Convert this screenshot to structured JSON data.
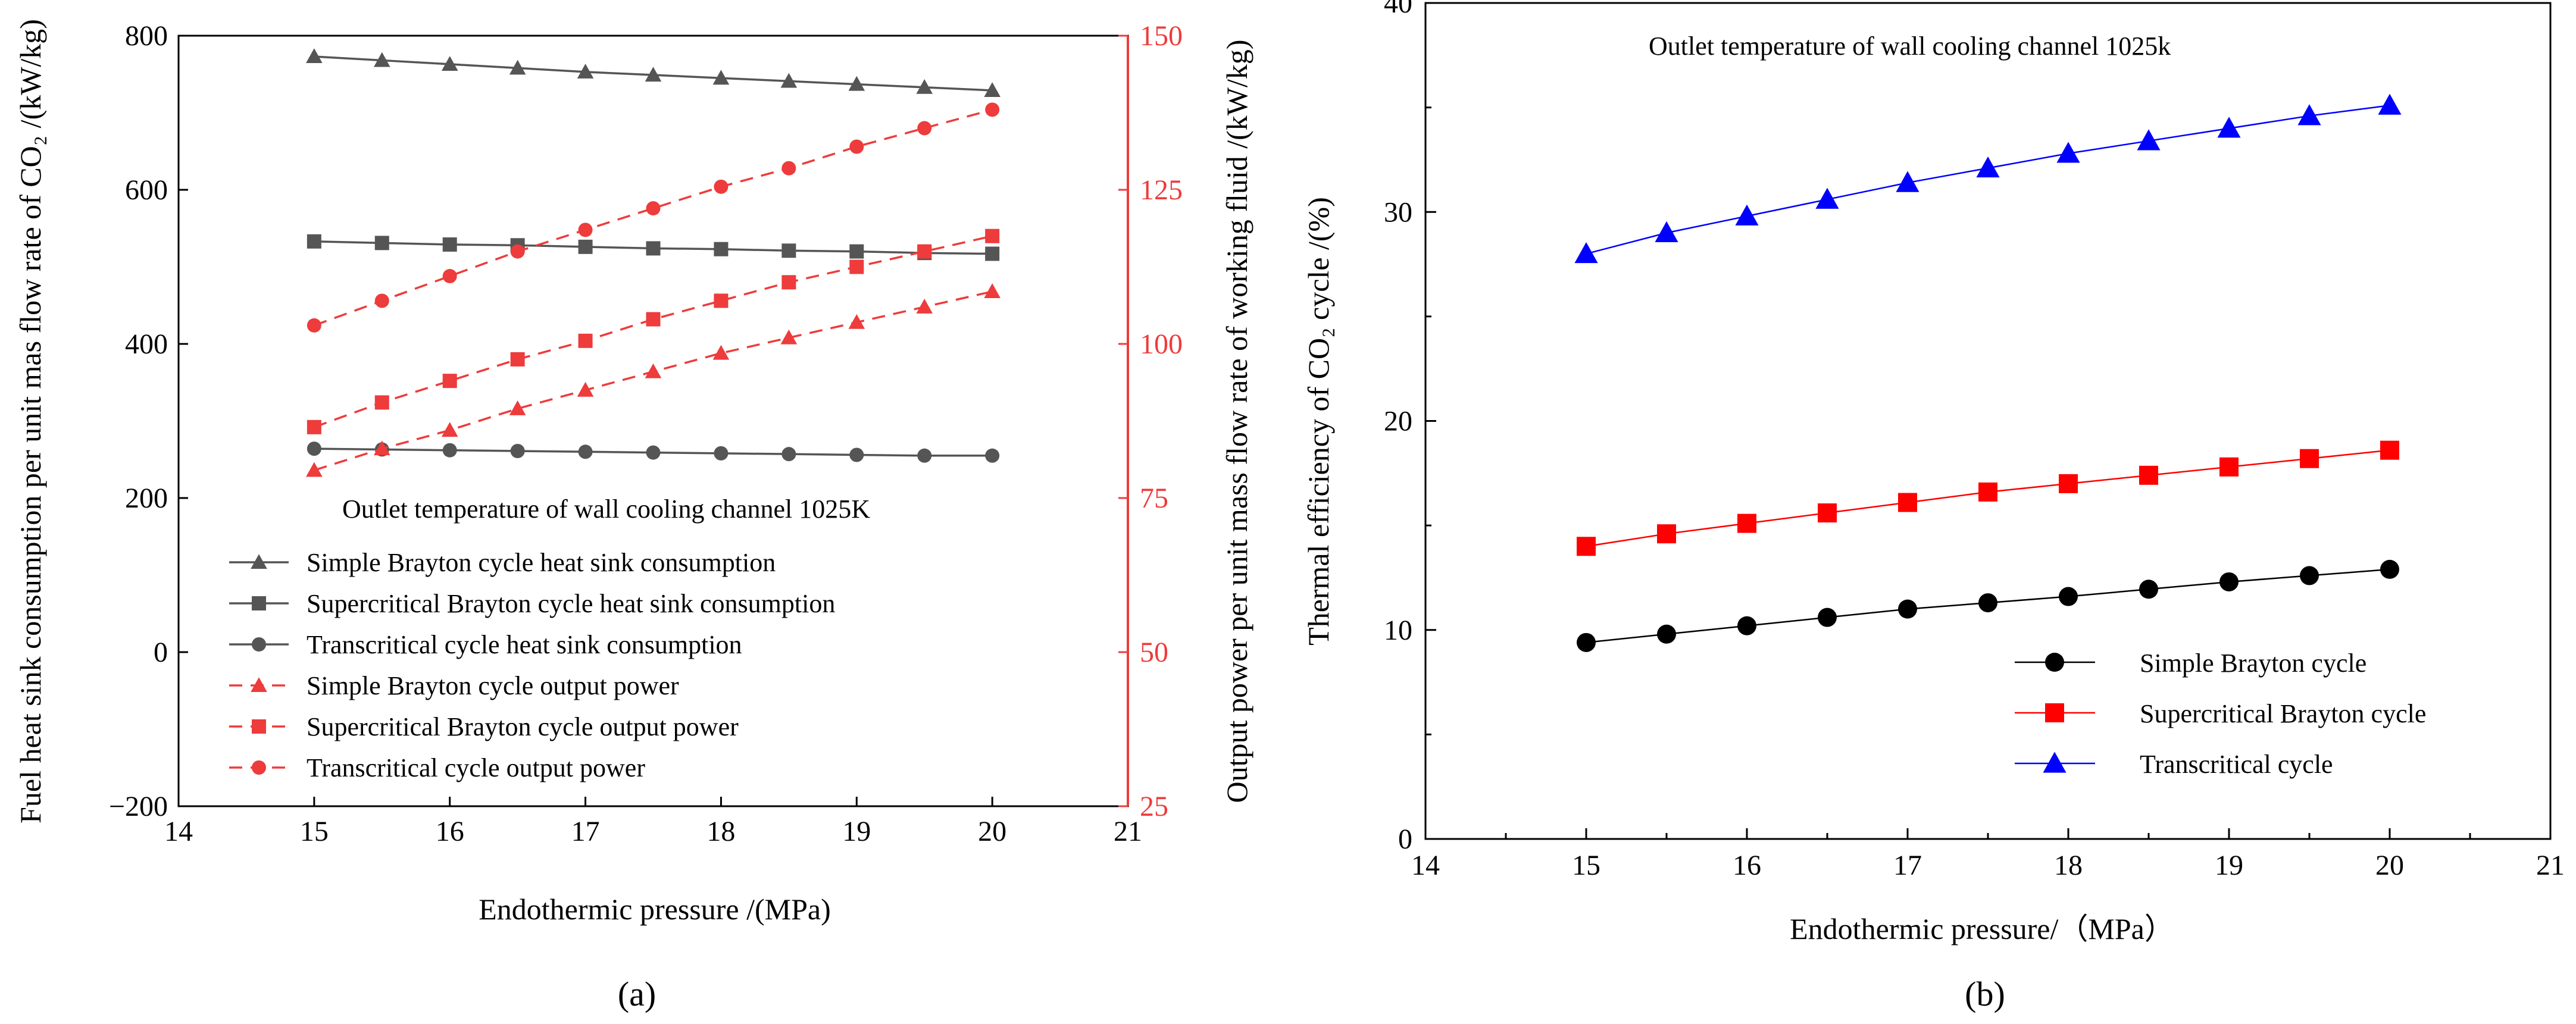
{
  "chart_data": [
    {
      "type": "line",
      "panel_label": "(a)",
      "annotation": "Outlet temperature of wall cooling channel 1025K",
      "xlabel": "Endothermic pressure /(MPa)",
      "ylabel": "Fuel heat sink consumption per unit mas flow rate of CO₂ /(kW/kg)",
      "y2label": "Output power per unit mass flow rate of working fluid /(kW/kg)",
      "xlim": [
        14,
        21
      ],
      "ylim": [
        -200,
        800
      ],
      "y2lim": [
        25,
        150
      ],
      "xticks": [
        "14",
        "15",
        "16",
        "17",
        "18",
        "19",
        "20",
        "21"
      ],
      "yticks": [
        "−200",
        "0",
        "200",
        "400",
        "600",
        "800"
      ],
      "y2ticks": [
        "25",
        "50",
        "75",
        "100",
        "125",
        "150"
      ],
      "legend_position": "left-middle",
      "grid": false,
      "x": [
        15,
        15.5,
        16,
        16.5,
        17,
        17.5,
        18,
        18.5,
        19,
        19.5,
        20
      ],
      "series": [
        {
          "name": "Simple Brayton cycle heat sink consumption",
          "axis": "left",
          "marker": "triangle",
          "line": "solid",
          "color": "#555555",
          "values": [
            773,
            768,
            763,
            758,
            753,
            749,
            745,
            741,
            737,
            733,
            729
          ]
        },
        {
          "name": "Supercritical Brayton cycle heat sink consumption",
          "axis": "left",
          "marker": "square",
          "line": "solid",
          "color": "#555555",
          "values": [
            533,
            531,
            529,
            528,
            526,
            524,
            523,
            521,
            520,
            518,
            517
          ]
        },
        {
          "name": "Transcritical cycle heat sink consumption",
          "axis": "left",
          "marker": "circle",
          "line": "solid",
          "color": "#555555",
          "values": [
            264,
            263,
            262,
            261,
            260,
            259,
            258,
            257,
            256,
            255,
            255
          ]
        },
        {
          "name": "Simple Brayton cycle output power",
          "axis": "right",
          "marker": "triangle",
          "line": "dashed",
          "color": "#ee3b3b",
          "values": [
            79.5,
            83,
            86,
            89.5,
            92.5,
            95.5,
            98.5,
            101,
            103.5,
            106,
            108.5
          ]
        },
        {
          "name": "Supercritical Brayton cycle output power",
          "axis": "right",
          "marker": "square",
          "line": "dashed",
          "color": "#ee3b3b",
          "values": [
            86.5,
            90.5,
            94,
            97.5,
            100.5,
            104,
            107,
            110,
            112.5,
            115,
            117.5
          ]
        },
        {
          "name": "Transcritical cycle output power",
          "axis": "right",
          "marker": "circle",
          "line": "dashed",
          "color": "#ee3b3b",
          "values": [
            103,
            107,
            111,
            115,
            118.5,
            122,
            125.5,
            128.5,
            132,
            135,
            138
          ]
        }
      ]
    },
    {
      "type": "line",
      "panel_label": "(b)",
      "annotation": "Outlet temperature of wall cooling channel 1025k",
      "xlabel": "Endothermic pressure/（MPa）",
      "ylabel": "Thermal efficiency of CO₂ cycle /(%)",
      "xlim": [
        14,
        21
      ],
      "ylim": [
        0,
        40
      ],
      "xticks": [
        "14",
        "15",
        "16",
        "17",
        "18",
        "19",
        "20",
        "21"
      ],
      "yticks": [
        "0",
        "10",
        "20",
        "30",
        "40"
      ],
      "legend_position": "bottom-right",
      "grid": false,
      "x": [
        15,
        15.5,
        16,
        16.5,
        17,
        17.5,
        18,
        18.5,
        19,
        19.5,
        20
      ],
      "series": [
        {
          "name": "Simple Brayton cycle",
          "marker": "circle",
          "color": "#000000",
          "values": [
            9.4,
            9.8,
            10.2,
            10.6,
            11.0,
            11.3,
            11.6,
            11.95,
            12.3,
            12.6,
            12.9
          ]
        },
        {
          "name": "Supercritical Brayton cycle",
          "marker": "square",
          "color": "#ff0000",
          "values": [
            14.0,
            14.6,
            15.1,
            15.6,
            16.1,
            16.6,
            17.0,
            17.4,
            17.8,
            18.2,
            18.6
          ]
        },
        {
          "name": "Transcritical cycle",
          "marker": "triangle",
          "color": "#0000ff",
          "values": [
            28.0,
            29.0,
            29.8,
            30.6,
            31.4,
            32.1,
            32.8,
            33.4,
            34.0,
            34.6,
            35.1
          ]
        }
      ]
    }
  ]
}
